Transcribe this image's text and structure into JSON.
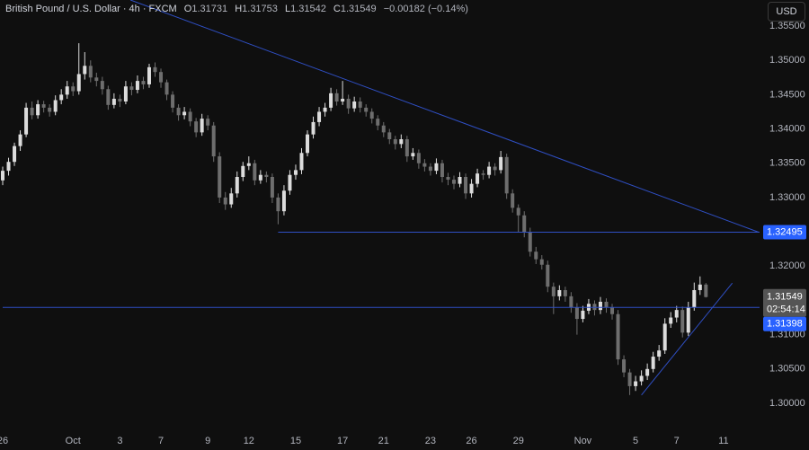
{
  "chart_data": {
    "type": "candlestick",
    "legend": {
      "symbol": "British Pound / U.S. Dollar · 4h · FXCM",
      "ohlc": [
        {
          "label": "O",
          "value": "1.31731"
        },
        {
          "label": "H",
          "value": "1.31753"
        },
        {
          "label": "L",
          "value": "1.31542"
        },
        {
          "label": "C",
          "value": "1.31549"
        }
      ],
      "change": "−0.00182 (−0.14%)"
    },
    "currency": "USD",
    "up_color": "#dcdcdc",
    "down_color": "#6e6e6e",
    "line_color": "#2f4fc4",
    "label_color": "#2962ff",
    "candles": [
      [
        1.3325,
        1.3345,
        1.3318,
        1.3339
      ],
      [
        1.3339,
        1.3358,
        1.3332,
        1.3352
      ],
      [
        1.3352,
        1.338,
        1.3346,
        1.3375
      ],
      [
        1.3375,
        1.3398,
        1.3368,
        1.3392
      ],
      [
        1.3392,
        1.3438,
        1.3388,
        1.3431
      ],
      [
        1.3431,
        1.344,
        1.3414,
        1.342
      ],
      [
        1.342,
        1.3442,
        1.3415,
        1.3436
      ],
      [
        1.3436,
        1.3441,
        1.3424,
        1.3431
      ],
      [
        1.3431,
        1.3436,
        1.3418,
        1.3425
      ],
      [
        1.3425,
        1.3449,
        1.342,
        1.3442
      ],
      [
        1.3442,
        1.3458,
        1.3436,
        1.345
      ],
      [
        1.345,
        1.347,
        1.3444,
        1.3462
      ],
      [
        1.3462,
        1.3468,
        1.3448,
        1.3455
      ],
      [
        1.3455,
        1.3525,
        1.345,
        1.348
      ],
      [
        1.348,
        1.3512,
        1.3472,
        1.3492
      ],
      [
        1.3492,
        1.35,
        1.3468,
        1.3475
      ],
      [
        1.3475,
        1.3482,
        1.3462,
        1.347
      ],
      [
        1.347,
        1.3476,
        1.345,
        1.3458
      ],
      [
        1.3458,
        1.3463,
        1.3428,
        1.3435
      ],
      [
        1.3435,
        1.3452,
        1.343,
        1.3444
      ],
      [
        1.3444,
        1.345,
        1.3432,
        1.344
      ],
      [
        1.344,
        1.347,
        1.3436,
        1.3462
      ],
      [
        1.3462,
        1.3468,
        1.3449,
        1.3457
      ],
      [
        1.3457,
        1.3478,
        1.3452,
        1.347
      ],
      [
        1.347,
        1.3476,
        1.3458,
        1.3465
      ],
      [
        1.3465,
        1.3495,
        1.346,
        1.349
      ],
      [
        1.349,
        1.3497,
        1.3476,
        1.3483
      ],
      [
        1.3483,
        1.3488,
        1.346,
        1.3468
      ],
      [
        1.3468,
        1.3472,
        1.3442,
        1.345
      ],
      [
        1.345,
        1.3455,
        1.3424,
        1.3431
      ],
      [
        1.3431,
        1.3436,
        1.3412,
        1.342
      ],
      [
        1.342,
        1.3432,
        1.3414,
        1.3425
      ],
      [
        1.3425,
        1.343,
        1.3404,
        1.3411
      ],
      [
        1.3411,
        1.3416,
        1.3388,
        1.3395
      ],
      [
        1.3395,
        1.3422,
        1.339,
        1.3415
      ],
      [
        1.3415,
        1.342,
        1.3398,
        1.3405
      ],
      [
        1.3405,
        1.341,
        1.3352,
        1.336
      ],
      [
        1.336,
        1.3366,
        1.3292,
        1.33
      ],
      [
        1.33,
        1.3308,
        1.3282,
        1.329
      ],
      [
        1.329,
        1.3314,
        1.3285,
        1.3306
      ],
      [
        1.3306,
        1.3338,
        1.33,
        1.333
      ],
      [
        1.333,
        1.3352,
        1.3324,
        1.3346
      ],
      [
        1.3346,
        1.336,
        1.334,
        1.335
      ],
      [
        1.335,
        1.3355,
        1.3318,
        1.3325
      ],
      [
        1.3325,
        1.334,
        1.332,
        1.3333
      ],
      [
        1.3333,
        1.3338,
        1.3322,
        1.333
      ],
      [
        1.333,
        1.3335,
        1.3292,
        1.33
      ],
      [
        1.33,
        1.3306,
        1.3261,
        1.328
      ],
      [
        1.328,
        1.3318,
        1.3274,
        1.331
      ],
      [
        1.331,
        1.334,
        1.3304,
        1.3333
      ],
      [
        1.3333,
        1.3348,
        1.3326,
        1.334
      ],
      [
        1.334,
        1.3372,
        1.3334,
        1.3365
      ],
      [
        1.3365,
        1.3398,
        1.336,
        1.3392
      ],
      [
        1.3392,
        1.3418,
        1.3386,
        1.341
      ],
      [
        1.341,
        1.3432,
        1.3404,
        1.3425
      ],
      [
        1.3425,
        1.3438,
        1.3418,
        1.3431
      ],
      [
        1.3431,
        1.346,
        1.3426,
        1.3452
      ],
      [
        1.3452,
        1.3458,
        1.3434,
        1.344
      ],
      [
        1.344,
        1.347,
        1.3435,
        1.3444
      ],
      [
        1.3444,
        1.345,
        1.3422,
        1.343
      ],
      [
        1.343,
        1.3447,
        1.3425,
        1.344
      ],
      [
        1.344,
        1.3446,
        1.3424,
        1.3431
      ],
      [
        1.3431,
        1.3436,
        1.3418,
        1.3425
      ],
      [
        1.3425,
        1.343,
        1.3408,
        1.3415
      ],
      [
        1.3415,
        1.342,
        1.3398,
        1.3405
      ],
      [
        1.3405,
        1.341,
        1.3388,
        1.3395
      ],
      [
        1.3395,
        1.34,
        1.3378,
        1.3385
      ],
      [
        1.3385,
        1.339,
        1.337,
        1.3378
      ],
      [
        1.3378,
        1.3392,
        1.3372,
        1.3385
      ],
      [
        1.3385,
        1.339,
        1.3352,
        1.336
      ],
      [
        1.336,
        1.3372,
        1.3355,
        1.3365
      ],
      [
        1.3365,
        1.337,
        1.3342,
        1.335
      ],
      [
        1.335,
        1.3356,
        1.3338,
        1.3345
      ],
      [
        1.3345,
        1.335,
        1.3332,
        1.3339
      ],
      [
        1.3339,
        1.3357,
        1.3334,
        1.335
      ],
      [
        1.335,
        1.3355,
        1.3322,
        1.333
      ],
      [
        1.333,
        1.3336,
        1.3318,
        1.3326
      ],
      [
        1.3326,
        1.3332,
        1.3312,
        1.332
      ],
      [
        1.332,
        1.3337,
        1.3315,
        1.333
      ],
      [
        1.333,
        1.3335,
        1.3298,
        1.3306
      ],
      [
        1.3306,
        1.3327,
        1.33,
        1.332
      ],
      [
        1.332,
        1.3342,
        1.3315,
        1.3335
      ],
      [
        1.3335,
        1.334,
        1.3326,
        1.3333
      ],
      [
        1.3333,
        1.3352,
        1.3328,
        1.3345
      ],
      [
        1.3345,
        1.335,
        1.3332,
        1.334
      ],
      [
        1.334,
        1.3368,
        1.3335,
        1.3359
      ],
      [
        1.3359,
        1.3364,
        1.3298,
        1.3306
      ],
      [
        1.3306,
        1.3312,
        1.3278,
        1.3285
      ],
      [
        1.3285,
        1.329,
        1.325,
        1.3274
      ],
      [
        1.3274,
        1.328,
        1.3242,
        1.325
      ],
      [
        1.325,
        1.3256,
        1.3214,
        1.3221
      ],
      [
        1.3221,
        1.3228,
        1.3203,
        1.321
      ],
      [
        1.321,
        1.3216,
        1.3195,
        1.3202
      ],
      [
        1.3202,
        1.3208,
        1.3162,
        1.317
      ],
      [
        1.317,
        1.3176,
        1.313,
        1.3156
      ],
      [
        1.3156,
        1.3172,
        1.315,
        1.3165
      ],
      [
        1.3165,
        1.317,
        1.3148,
        1.3156
      ],
      [
        1.3156,
        1.3162,
        1.3132,
        1.314
      ],
      [
        1.314,
        1.3146,
        1.31,
        1.3123
      ],
      [
        1.3123,
        1.3142,
        1.3118,
        1.3135
      ],
      [
        1.3135,
        1.3152,
        1.313,
        1.3145
      ],
      [
        1.3145,
        1.315,
        1.3128,
        1.3136
      ],
      [
        1.3136,
        1.3155,
        1.313,
        1.3148
      ],
      [
        1.3148,
        1.3153,
        1.3132,
        1.314
      ],
      [
        1.314,
        1.3145,
        1.3122,
        1.313
      ],
      [
        1.313,
        1.3136,
        1.3056,
        1.3064
      ],
      [
        1.3064,
        1.307,
        1.3038,
        1.3045
      ],
      [
        1.3045,
        1.305,
        1.3012,
        1.3025
      ],
      [
        1.3025,
        1.304,
        1.3018,
        1.3032
      ],
      [
        1.3032,
        1.3048,
        1.3026,
        1.304
      ],
      [
        1.304,
        1.3058,
        1.3034,
        1.305
      ],
      [
        1.305,
        1.3075,
        1.3045,
        1.3068
      ],
      [
        1.3068,
        1.3085,
        1.3062,
        1.3077
      ],
      [
        1.3077,
        1.3124,
        1.3072,
        1.3116
      ],
      [
        1.3116,
        1.3133,
        1.311,
        1.3125
      ],
      [
        1.3125,
        1.3142,
        1.3118,
        1.3136
      ],
      [
        1.3136,
        1.3141,
        1.3096,
        1.3103
      ],
      [
        1.3103,
        1.3148,
        1.3098,
        1.314
      ],
      [
        1.314,
        1.3176,
        1.3135,
        1.3165
      ],
      [
        1.3165,
        1.3185,
        1.3158,
        1.31731
      ],
      [
        1.31731,
        1.31753,
        1.31542,
        1.31549
      ]
    ],
    "xlim": [
      0,
      129
    ],
    "xticks": [
      {
        "value": 0,
        "label": "26"
      },
      {
        "value": 12,
        "label": "Oct"
      },
      {
        "value": 20,
        "label": "3"
      },
      {
        "value": 27,
        "label": "7"
      },
      {
        "value": 35,
        "label": "9"
      },
      {
        "value": 42,
        "label": "12"
      },
      {
        "value": 50,
        "label": "15"
      },
      {
        "value": 58,
        "label": "17"
      },
      {
        "value": 65,
        "label": "21"
      },
      {
        "value": 73,
        "label": "23"
      },
      {
        "value": 80,
        "label": "26"
      },
      {
        "value": 88,
        "label": "29"
      },
      {
        "value": 99,
        "label": "Nov"
      },
      {
        "value": 108,
        "label": "5"
      },
      {
        "value": 115,
        "label": "7"
      },
      {
        "value": 123,
        "label": "11"
      }
    ],
    "ylim": [
      1.2962,
      1.3588
    ],
    "yticks": [
      {
        "value": 1.355,
        "label": "1.35500"
      },
      {
        "value": 1.35,
        "label": "1.35000"
      },
      {
        "value": 1.345,
        "label": "1.34500"
      },
      {
        "value": 1.34,
        "label": "1.34000"
      },
      {
        "value": 1.335,
        "label": "1.33500"
      },
      {
        "value": 1.33,
        "label": "1.33000"
      },
      {
        "value": 1.325,
        "label": "1.32500"
      },
      {
        "value": 1.32,
        "label": "1.32000"
      },
      {
        "value": 1.315,
        "label": "1.31500"
      },
      {
        "value": 1.31,
        "label": "1.31000"
      },
      {
        "value": 1.305,
        "label": "1.30500"
      },
      {
        "value": 1.3,
        "label": "1.30000"
      }
    ],
    "grid": false,
    "trendlines": [
      {
        "x": [
          21.8,
          129
        ],
        "y": [
          1.3588,
          1.32495
        ]
      },
      {
        "x": [
          109,
          124.5
        ],
        "y": [
          1.3012,
          1.31753
        ]
      }
    ],
    "levels": [
      {
        "value": 1.32495,
        "from": 47
      },
      {
        "value": 1.31398,
        "from": 0
      }
    ],
    "last_price": 1.31549,
    "countdown": "02:54:14"
  }
}
